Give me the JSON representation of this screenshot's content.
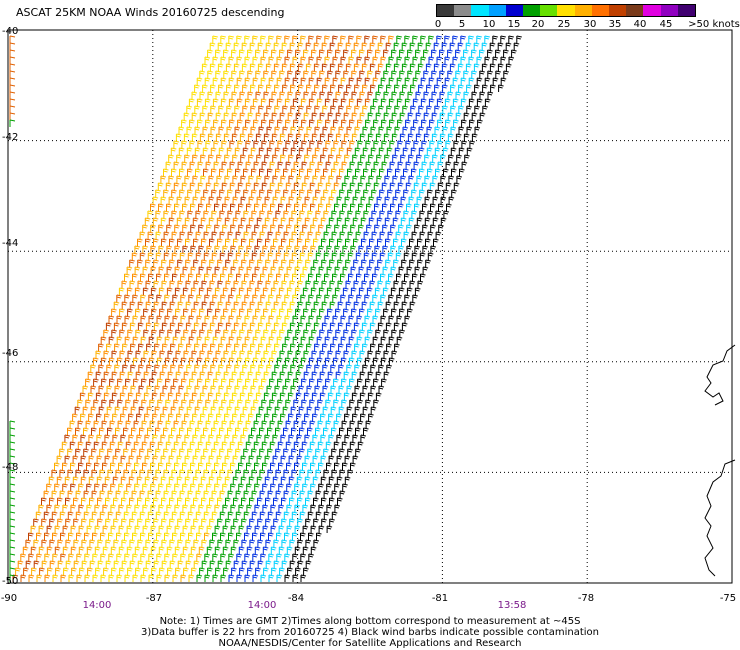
{
  "title": "ASCAT 25KM NOAA Winds 20160725 descending",
  "colorbar": {
    "labels": [
      "0",
      "5",
      "10",
      "15",
      "20",
      "25",
      "30",
      "35",
      "40",
      "45",
      ">50 knots"
    ],
    "colors": [
      "#3a3a3a",
      "#8c8c8c",
      "#00e5ff",
      "#00a0ff",
      "#0000d0",
      "#00a000",
      "#66e000",
      "#ffe000",
      "#ffb000",
      "#ff7000",
      "#c04000",
      "#7a3a1a",
      "#e000e0",
      "#9000c0",
      "#400070"
    ]
  },
  "axes": {
    "x_ticks": [
      "-90",
      "-87",
      "-84",
      "-81",
      "-78",
      "-75"
    ],
    "y_ticks": [
      "-40",
      "-42",
      "-44",
      "-46",
      "-48",
      "-50"
    ]
  },
  "pass_times": [
    "14:00",
    "14:00",
    "13:58"
  ],
  "notes": [
    "Note: 1) Times are GMT 2)Times along bottom correspond to measurement at ~45S",
    "3)Data buffer is 22 hrs from 20160725 4) Black wind barbs indicate possible contamination",
    "NOAA/NESDIS/Center for Satellite Applications and Research"
  ]
}
